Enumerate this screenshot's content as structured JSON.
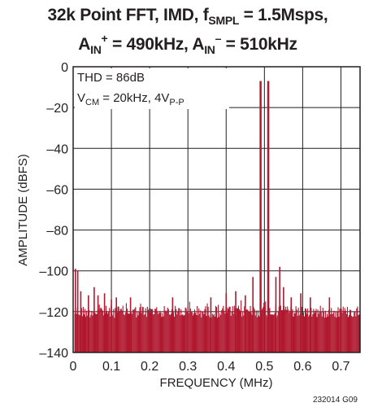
{
  "title": {
    "line1_a": "32k Point FFT, IMD, f",
    "line1_sub": "SMPL",
    "line1_b": " = 1.5Msps,",
    "line2_a": "A",
    "line2_sub1": "IN",
    "line2_sup1": "+",
    "line2_b": " = 490kHz, A",
    "line2_sub2": "IN",
    "line2_sup2": "–",
    "line2_c": " = 510kHz"
  },
  "annotation": {
    "thd": "THD = 86dB",
    "vcm_a": "V",
    "vcm_sub1": "CM",
    "vcm_b": " = 20kHz, 4V",
    "vcm_sub2": "P-P"
  },
  "figure_code": "232014 G09",
  "colors": {
    "trace": "#b0182f",
    "axis": "#231f20",
    "grid": "#231f20"
  },
  "chart_data": {
    "type": "bar",
    "xlabel": "FREQUENCY (MHz)",
    "ylabel": "AMPLITUDE (dBFS)",
    "xlim": [
      0,
      0.75
    ],
    "ylim": [
      -140,
      0
    ],
    "x_ticks": [
      "0",
      "0.1",
      "0.2",
      "0.3",
      "0.4",
      "0.5",
      "0.6",
      "0.7"
    ],
    "x_tick_values": [
      0,
      0.1,
      0.2,
      0.3,
      0.4,
      0.5,
      0.6,
      0.7
    ],
    "y_ticks": [
      "0",
      "–20",
      "–40",
      "–60",
      "–80",
      "–100",
      "–120",
      "–140"
    ],
    "y_tick_values": [
      0,
      -20,
      -40,
      -60,
      -80,
      -100,
      -120,
      -140
    ],
    "grid": true,
    "noise_floor_dbfs": -120,
    "spurs": [
      {
        "x": 0.006,
        "y": -99
      },
      {
        "x": 0.012,
        "y": -100
      },
      {
        "x": 0.02,
        "y": -110
      },
      {
        "x": 0.04,
        "y": -112
      },
      {
        "x": 0.055,
        "y": -108
      },
      {
        "x": 0.065,
        "y": -112
      },
      {
        "x": 0.082,
        "y": -111
      },
      {
        "x": 0.1,
        "y": -114
      },
      {
        "x": 0.113,
        "y": -113
      },
      {
        "x": 0.15,
        "y": -113
      },
      {
        "x": 0.26,
        "y": -113
      },
      {
        "x": 0.36,
        "y": -113
      },
      {
        "x": 0.4,
        "y": -111
      },
      {
        "x": 0.425,
        "y": -110
      },
      {
        "x": 0.45,
        "y": -112
      },
      {
        "x": 0.47,
        "y": -103
      },
      {
        "x": 0.49,
        "y": -7
      },
      {
        "x": 0.51,
        "y": -7
      },
      {
        "x": 0.53,
        "y": -103
      },
      {
        "x": 0.54,
        "y": -98
      },
      {
        "x": 0.55,
        "y": -108
      },
      {
        "x": 0.57,
        "y": -113
      },
      {
        "x": 0.595,
        "y": -111
      },
      {
        "x": 0.62,
        "y": -113
      },
      {
        "x": 0.67,
        "y": -113
      }
    ]
  }
}
